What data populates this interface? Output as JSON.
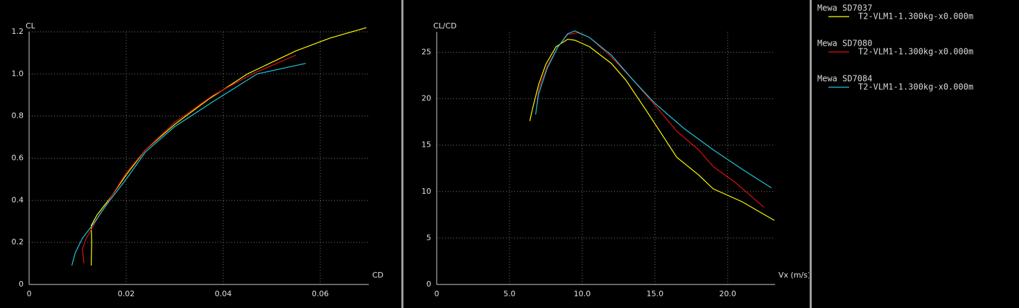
{
  "chart_data": [
    {
      "type": "line",
      "x_label": "CD",
      "y_label": "CL",
      "xlim": [
        0,
        0.07
      ],
      "ylim": [
        0,
        1.2
      ],
      "xticks": [
        0,
        0.02,
        0.04,
        0.06
      ],
      "yticks": [
        0,
        0.2,
        0.4,
        0.6,
        0.8,
        {
          "value": 1,
          "label": "1.0"
        },
        1.2
      ],
      "grid": true,
      "series": [
        {
          "color": "#ffff00",
          "x": [
            0.0128,
            0.0129,
            0.0128,
            0.014,
            0.017,
            0.02,
            0.024,
            0.03,
            0.037,
            0.045,
            0.055,
            0.062,
            0.0695
          ],
          "values": [
            0.09,
            0.2,
            0.28,
            0.33,
            0.42,
            0.52,
            0.64,
            0.76,
            0.88,
            1.0,
            1.11,
            1.17,
            1.22
          ]
        },
        {
          "color": "#e01010",
          "x": [
            0.0113,
            0.011,
            0.0118,
            0.014,
            0.017,
            0.02,
            0.024,
            0.03,
            0.038,
            0.046,
            0.055
          ],
          "values": [
            0.1,
            0.17,
            0.22,
            0.31,
            0.42,
            0.53,
            0.64,
            0.77,
            0.9,
            1.0,
            1.09
          ]
        },
        {
          "color": "#20c8e0",
          "x": [
            0.0088,
            0.0095,
            0.011,
            0.013,
            0.016,
            0.02,
            0.024,
            0.03,
            0.038,
            0.047,
            0.057
          ],
          "values": [
            0.09,
            0.15,
            0.22,
            0.28,
            0.38,
            0.5,
            0.63,
            0.75,
            0.87,
            1.0,
            1.05
          ]
        }
      ]
    },
    {
      "type": "line",
      "x_label": "Vx (m/s)",
      "y_label": "CL/CD",
      "xlim": [
        0,
        23.25
      ],
      "ylim": [
        0,
        27.2
      ],
      "xticks": [
        0,
        {
          "value": 5,
          "label": "5.0"
        },
        {
          "value": 10,
          "label": "10.0"
        },
        {
          "value": 15,
          "label": "15.0"
        },
        {
          "value": 20,
          "label": "20.0"
        }
      ],
      "yticks": [
        0,
        5,
        10,
        15,
        20,
        25
      ],
      "grid": true,
      "series": [
        {
          "color": "#ffff00",
          "x": [
            6.4,
            6.6,
            7.0,
            7.5,
            8.2,
            9.0,
            9.5,
            10.5,
            12.0,
            13.0,
            14.5,
            16.5,
            18.0,
            19.0,
            21.0,
            23.2
          ],
          "values": [
            17.6,
            19,
            21.5,
            23.7,
            25.6,
            26.4,
            26.3,
            25.6,
            23.8,
            22.0,
            18.5,
            13.7,
            11.8,
            10.3,
            8.9,
            6.9
          ]
        },
        {
          "color": "#e01010",
          "x": [
            6.9,
            7.0,
            7.6,
            8.3,
            9.0,
            9.7,
            10.5,
            12.0,
            13.5,
            15.0,
            16.5,
            18.0,
            19.0,
            20.5,
            22.5
          ],
          "values": [
            19.5,
            21,
            23.5,
            25.5,
            26.9,
            27.1,
            26.6,
            24.5,
            22,
            19.3,
            16.5,
            14.5,
            12.7,
            11,
            8.3
          ]
        },
        {
          "color": "#20c8e0",
          "x": [
            6.8,
            7.0,
            7.6,
            8.3,
            9.0,
            9.5,
            10.5,
            12.0,
            13.5,
            15.0,
            17.0,
            19.0,
            21.0,
            23.0
          ],
          "values": [
            18.3,
            20.5,
            23.3,
            25.5,
            27.0,
            27.3,
            26.6,
            24.7,
            22,
            19.5,
            16.8,
            14.5,
            12.4,
            10.4
          ]
        }
      ]
    }
  ],
  "legend": [
    {
      "group": "Mewa SD7037",
      "name": "T2-VLM1-1.300kg-x0.000m",
      "color": "#ffff00"
    },
    {
      "group": "Mewa SD7080",
      "name": "T2-VLM1-1.300kg-x0.000m",
      "color": "#e01010"
    },
    {
      "group": "Mewa SD7084",
      "name": "T2-VLM1-1.300kg-x0.000m",
      "color": "#20c8e0"
    }
  ]
}
